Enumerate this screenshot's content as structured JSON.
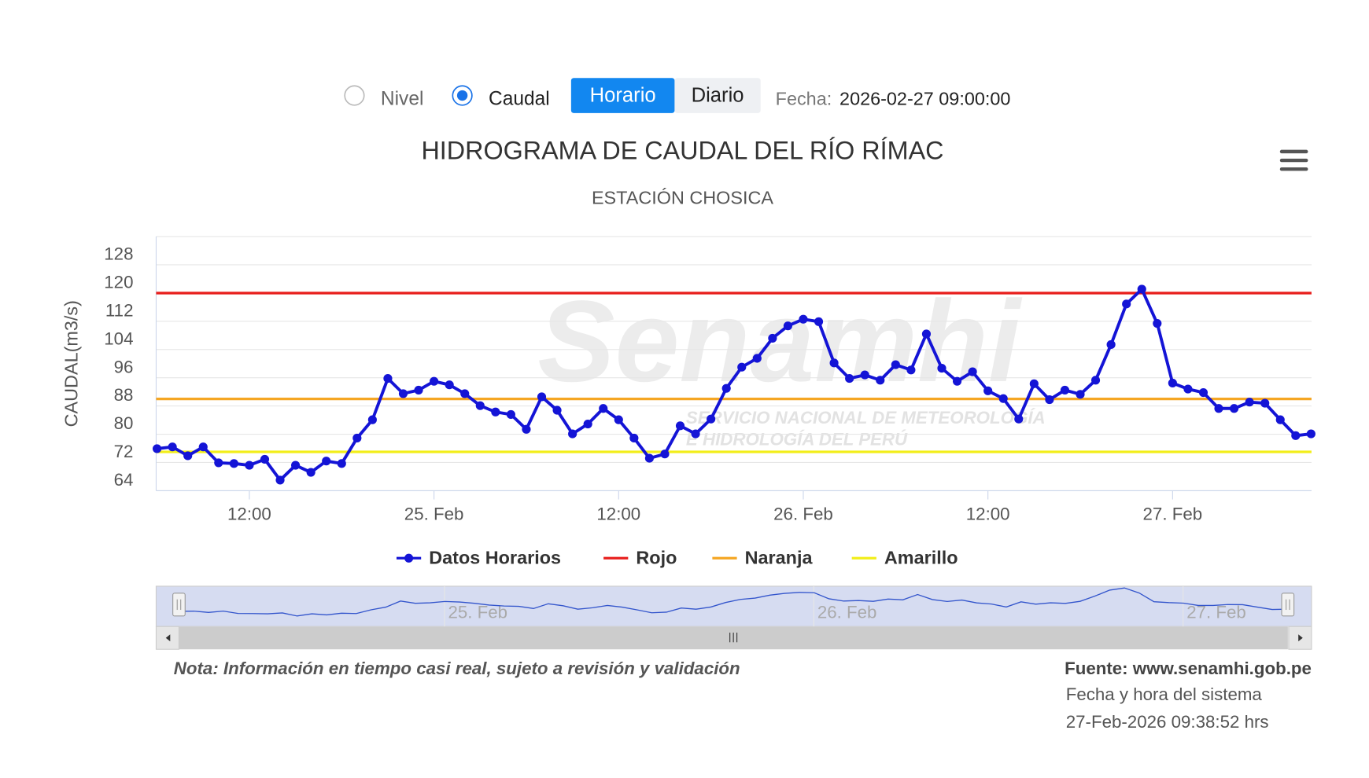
{
  "controls": {
    "radios": [
      {
        "label": "Nivel",
        "checked": false
      },
      {
        "label": "Caudal",
        "checked": true
      }
    ],
    "buttons": [
      {
        "label": "Horario",
        "active": true
      },
      {
        "label": "Diario",
        "active": false
      }
    ],
    "date_label": "Fecha:",
    "date_value": "2026-02-27 09:00:00"
  },
  "watermark": {
    "name": "Senamhi",
    "tagline": [
      "SERVICIO NACIONAL DE METEOROLOGÍA",
      "E HIDROLOGÍA DEL PERÚ"
    ]
  },
  "chart_data": {
    "type": "line",
    "title": "HIDROGRAMA DE CAUDAL DEL RÍO RÍMAC",
    "subtitle": "ESTACIÓN CHOSICA",
    "y_label": "CAUDAL(m3/s)",
    "x": [
      "24. Feb 06:00",
      "24. Feb 07:00",
      "24. Feb 08:00",
      "24. Feb 09:00",
      "24. Feb 10:00",
      "24. Feb 11:00",
      "24. Feb 12:00",
      "24. Feb 13:00",
      "24. Feb 14:00",
      "24. Feb 15:00",
      "24. Feb 16:00",
      "24. Feb 17:00",
      "24. Feb 18:00",
      "24. Feb 19:00",
      "24. Feb 20:00",
      "24. Feb 21:00",
      "24. Feb 22:00",
      "24. Feb 23:00",
      "25. Feb 00:00",
      "25. Feb 01:00",
      "25. Feb 02:00",
      "25. Feb 03:00",
      "25. Feb 04:00",
      "25. Feb 05:00",
      "25. Feb 06:00",
      "25. Feb 07:00",
      "25. Feb 08:00",
      "25. Feb 09:00",
      "25. Feb 10:00",
      "25. Feb 11:00",
      "25. Feb 12:00",
      "25. Feb 13:00",
      "25. Feb 14:00",
      "25. Feb 15:00",
      "25. Feb 16:00",
      "25. Feb 17:00",
      "25. Feb 18:00",
      "25. Feb 19:00",
      "25. Feb 20:00",
      "25. Feb 21:00",
      "25. Feb 22:00",
      "25. Feb 23:00",
      "26. Feb 00:00",
      "26. Feb 01:00",
      "26. Feb 02:00",
      "26. Feb 03:00",
      "26. Feb 04:00",
      "26. Feb 05:00",
      "26. Feb 06:00",
      "26. Feb 07:00",
      "26. Feb 08:00",
      "26. Feb 09:00",
      "26. Feb 10:00",
      "26. Feb 11:00",
      "26. Feb 12:00",
      "26. Feb 13:00",
      "26. Feb 14:00",
      "26. Feb 15:00",
      "26. Feb 16:00",
      "26. Feb 17:00",
      "26. Feb 18:00",
      "26. Feb 19:00",
      "26. Feb 20:00",
      "26. Feb 21:00",
      "26. Feb 22:00",
      "26. Feb 23:00",
      "27. Feb 00:00",
      "27. Feb 01:00",
      "27. Feb 02:00",
      "27. Feb 03:00",
      "27. Feb 04:00",
      "27. Feb 05:00",
      "27. Feb 06:00",
      "27. Feb 07:00",
      "27. Feb 08:00",
      "27. Feb 09:00"
    ],
    "series": [
      {
        "name": "Datos Horarios",
        "color": "#1414d6",
        "values": [
          75.9,
          76.4,
          73.9,
          76.4,
          71.9,
          71.7,
          71.2,
          72.9,
          67,
          71.2,
          69.2,
          72.4,
          71.7,
          78.9,
          84.1,
          95.8,
          91.5,
          92.5,
          95,
          94,
          91.5,
          88.1,
          86.3,
          85.6,
          81.4,
          90.6,
          86.8,
          80.1,
          82.9,
          87.3,
          84.1,
          78.9,
          73.2,
          74.4,
          82.4,
          80.1,
          84.3,
          93,
          99,
          101.5,
          107.2,
          110.7,
          112.6,
          111.9,
          100.2,
          95.8,
          96.8,
          95.3,
          99.7,
          98.2,
          108.4,
          98.7,
          95,
          97.7,
          92.3,
          90.1,
          84.3,
          94.3,
          89.8,
          92.5,
          91.3,
          95.3,
          105.4,
          116.9,
          121.1,
          111.4,
          94.5,
          92.8,
          91.8,
          87.3,
          87.3,
          89.1,
          88.8,
          84.1,
          79.6,
          80.1
        ]
      }
    ],
    "thresholds": [
      {
        "name": "Rojo",
        "color": "#e8201e",
        "value": 120
      },
      {
        "name": "Naranja",
        "color": "#f5a623",
        "value": 90
      },
      {
        "name": "Amarillo",
        "color": "#f2ee1a",
        "value": 75
      }
    ],
    "ylim": [
      64,
      136
    ],
    "yticks": [
      64,
      72,
      80,
      88,
      96,
      104,
      112,
      120,
      128
    ],
    "xticks": [
      {
        "value": "24. Feb 12:00",
        "label": "12:00"
      },
      {
        "value": "25. Feb 00:00",
        "label": "25. Feb"
      },
      {
        "value": "25. Feb 12:00",
        "label": "12:00"
      },
      {
        "value": "26. Feb 00:00",
        "label": "26. Feb"
      },
      {
        "value": "26. Feb 12:00",
        "label": "12:00"
      },
      {
        "value": "27. Feb 00:00",
        "label": "27. Feb"
      }
    ],
    "grid": true,
    "legend": "bottom"
  },
  "footer": {
    "note": "Nota: Información en tiempo casi real, sujeto a revisión y validación",
    "source": "Fuente: www.senamhi.gob.pe",
    "system_time_label": "Fecha y hora del sistema",
    "system_time": "27-Feb-2026 09:38:52 hrs"
  }
}
